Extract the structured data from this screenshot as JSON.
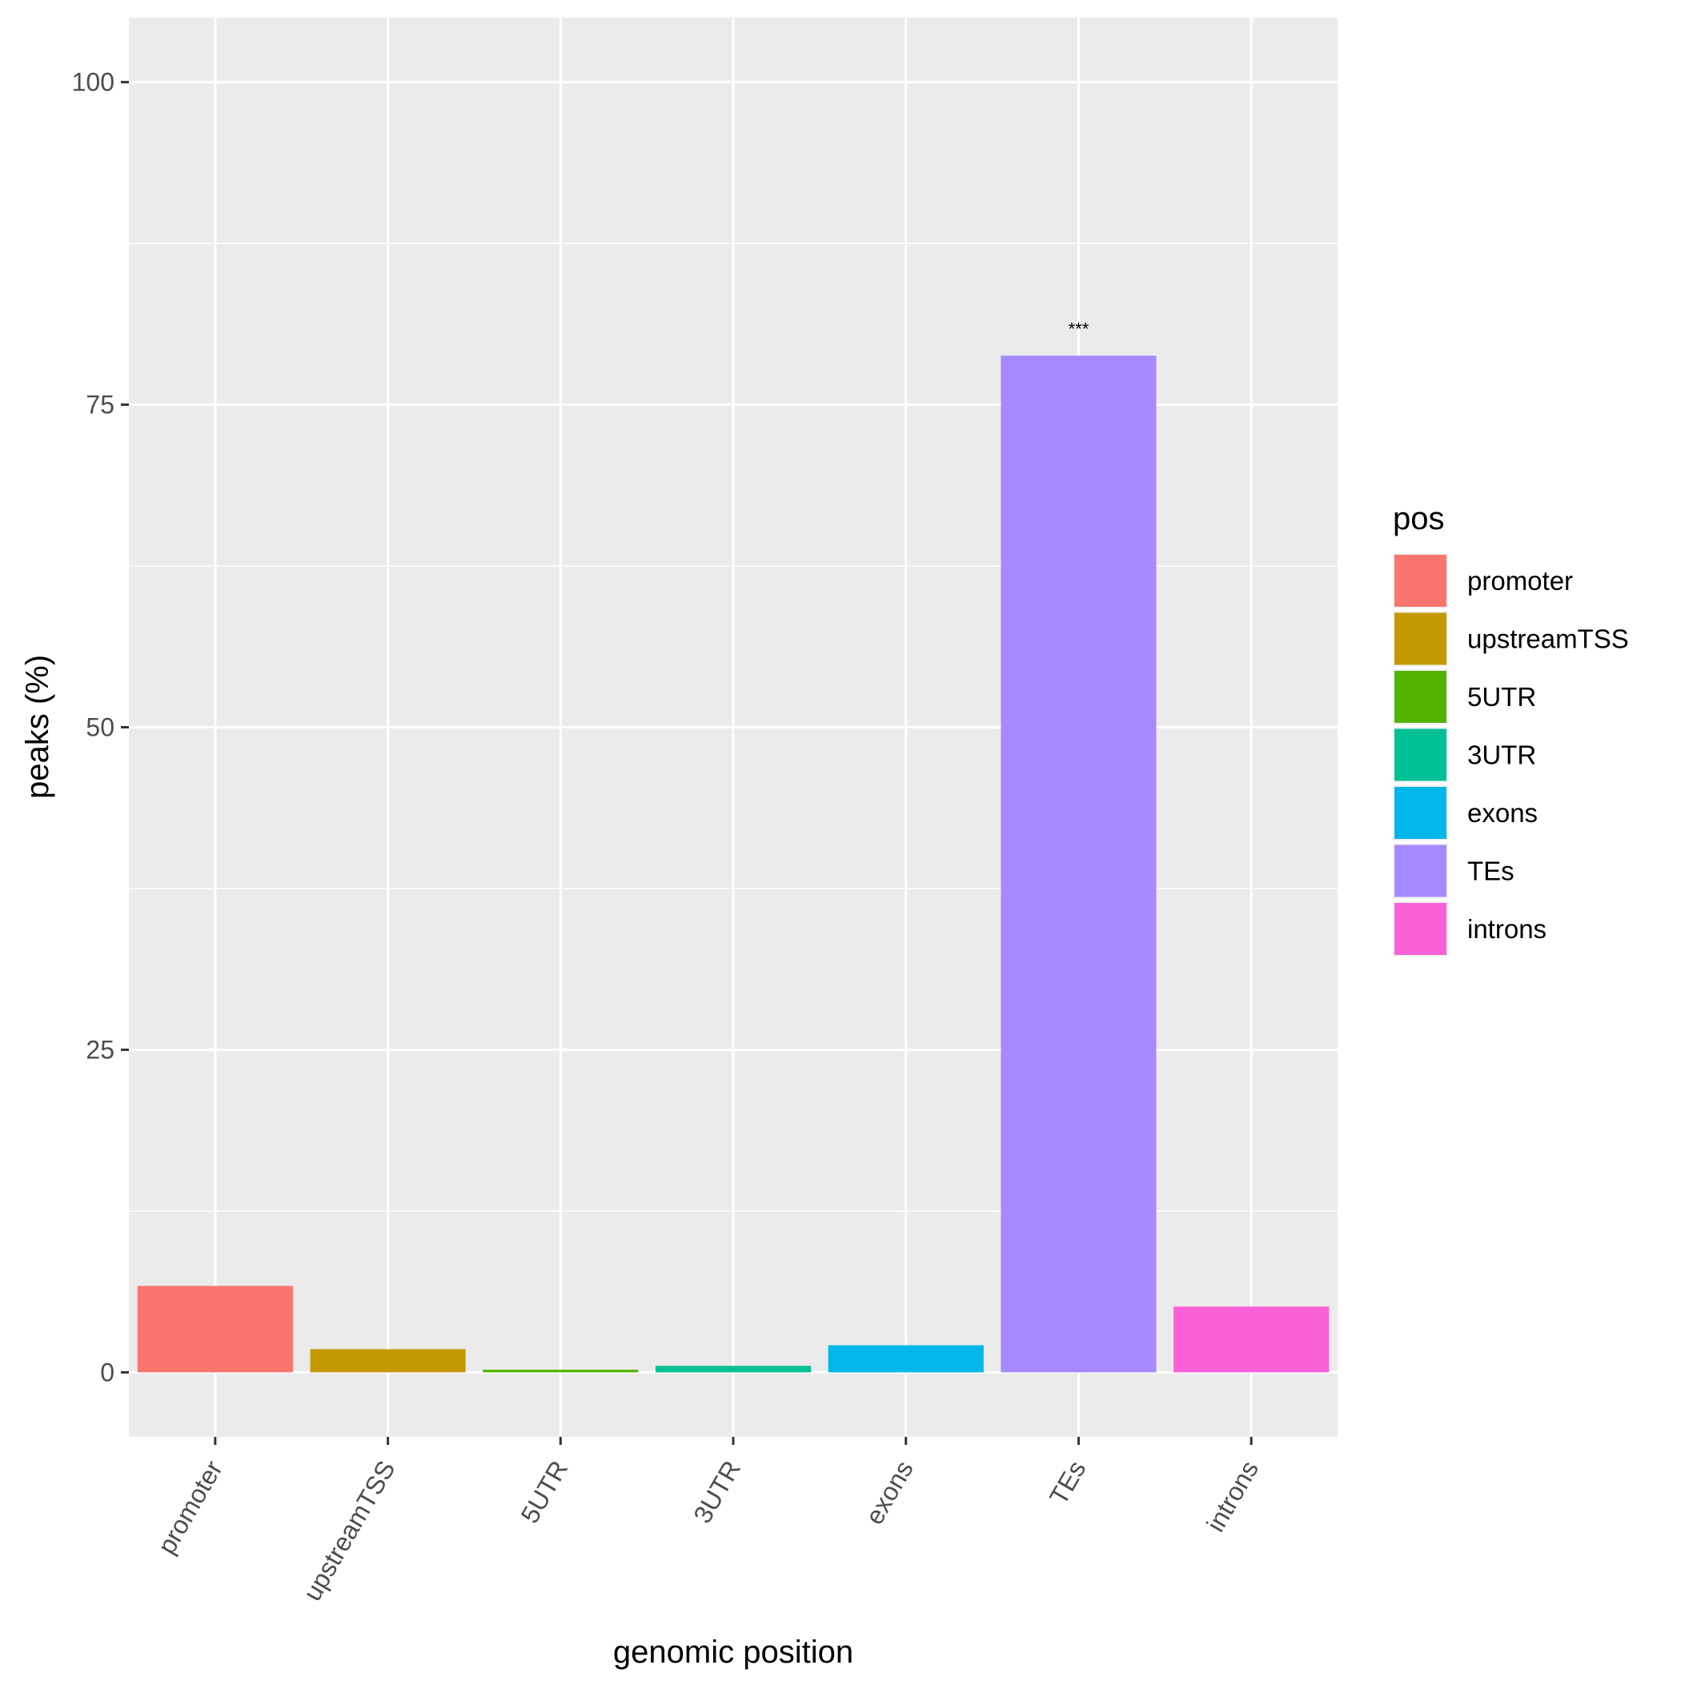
{
  "chart_data": {
    "type": "bar",
    "categories": [
      "promoter",
      "upstreamTSS",
      "5UTR",
      "3UTR",
      "exons",
      "TEs",
      "introns"
    ],
    "values": [
      6.7,
      1.8,
      0.2,
      0.5,
      2.1,
      78.8,
      5.1
    ],
    "colors": [
      "#F8766D",
      "#C49A00",
      "#53B400",
      "#00C094",
      "#00B6EB",
      "#A58AFF",
      "#FB61D7"
    ],
    "annotations": [
      "",
      "",
      "",
      "",
      "",
      "***",
      ""
    ],
    "xlabel": "genomic position",
    "ylabel": "peaks (%)",
    "ylim": [
      -5,
      105
    ],
    "yticks": [
      0,
      25,
      50,
      75,
      100
    ],
    "grid": true,
    "legend": {
      "title": "pos",
      "placement": "right",
      "entries": [
        "promoter",
        "upstreamTSS",
        "5UTR",
        "3UTR",
        "exons",
        "TEs",
        "introns"
      ]
    }
  }
}
